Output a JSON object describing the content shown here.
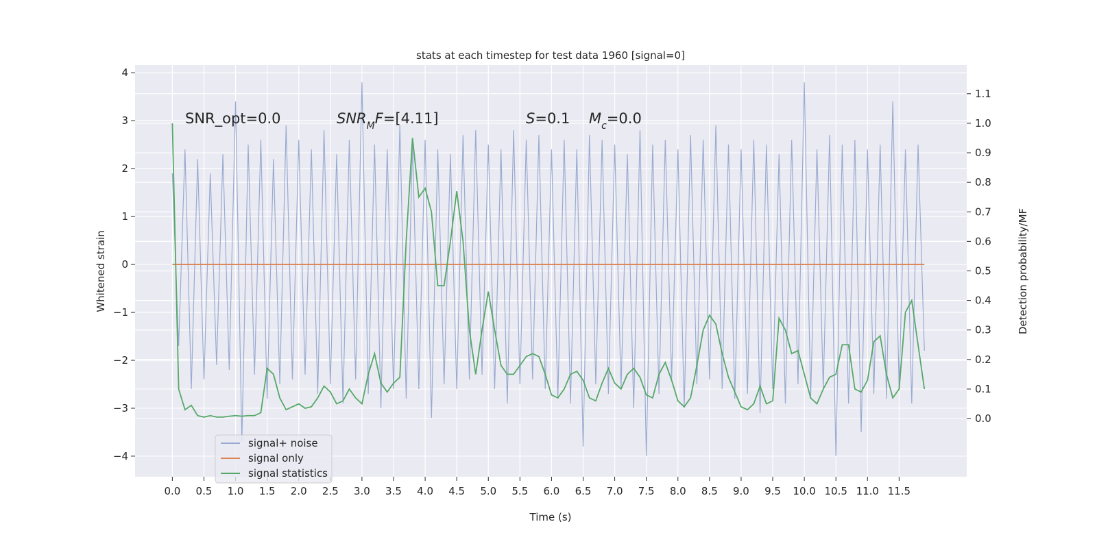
{
  "chart_data": {
    "type": "line",
    "title": "stats at each timestep for test data 1960 [signal=0]",
    "xlabel": "Time (s)",
    "ylabel": "Whitened strain",
    "y2label": "Detection probability/MF",
    "xlim": [
      -0.59,
      12.57
    ],
    "ylim": [
      -4.43,
      4.16
    ],
    "y2lim": [
      -0.197,
      1.197
    ],
    "grid": true,
    "legend": "lower left",
    "xticks": [
      {
        "value": 0,
        "label": "0.0"
      },
      {
        "value": 0.5,
        "label": "0.5"
      },
      {
        "value": 1,
        "label": "1.0"
      },
      {
        "value": 1.5,
        "label": "1.5"
      },
      {
        "value": 2,
        "label": "2.0"
      },
      {
        "value": 2.5,
        "label": "2.5"
      },
      {
        "value": 3,
        "label": "3.0"
      },
      {
        "value": 3.5,
        "label": "3.5"
      },
      {
        "value": 4,
        "label": "4.0"
      },
      {
        "value": 4.5,
        "label": "4.5"
      },
      {
        "value": 5,
        "label": "5.0"
      },
      {
        "value": 5.5,
        "label": "5.5"
      },
      {
        "value": 6,
        "label": "6.0"
      },
      {
        "value": 6.5,
        "label": "6.5"
      },
      {
        "value": 7,
        "label": "7.0"
      },
      {
        "value": 7.5,
        "label": "7.5"
      },
      {
        "value": 8,
        "label": "8.0"
      },
      {
        "value": 8.5,
        "label": "8.5"
      },
      {
        "value": 9,
        "label": "9.0"
      },
      {
        "value": 9.5,
        "label": "9.5"
      },
      {
        "value": 10,
        "label": "10.0"
      },
      {
        "value": 10.5,
        "label": "10.5"
      },
      {
        "value": 11,
        "label": "11.0"
      },
      {
        "value": 11.5,
        "label": "11.5"
      }
    ],
    "yticks": [
      {
        "value": -4,
        "label": "−4"
      },
      {
        "value": -3,
        "label": "−3"
      },
      {
        "value": -2,
        "label": "−2"
      },
      {
        "value": -1,
        "label": "−1"
      },
      0,
      1,
      2,
      3,
      4
    ],
    "y2ticks": [
      {
        "value": 0,
        "label": "0.0"
      },
      {
        "value": 0.1,
        "label": "0.1"
      },
      {
        "value": 0.2,
        "label": "0.2"
      },
      {
        "value": 0.3,
        "label": "0.3"
      },
      {
        "value": 0.4,
        "label": "0.4"
      },
      {
        "value": 0.5,
        "label": "0.5"
      },
      {
        "value": 0.6,
        "label": "0.6"
      },
      {
        "value": 0.7,
        "label": "0.7"
      },
      {
        "value": 0.8,
        "label": "0.8"
      },
      {
        "value": 0.9,
        "label": "0.9"
      },
      {
        "value": 1,
        "label": "1.0"
      },
      {
        "value": 1.1,
        "label": "1.1"
      }
    ],
    "annotations": [
      [
        {
          "text": "SNR_opt=0.0"
        }
      ],
      [
        {
          "text": "SNR",
          "style": "italic"
        },
        {
          "text": "M",
          "style": "italic-sub"
        },
        {
          "text": "F",
          "style": "italic"
        },
        {
          "text": "=[4.11]"
        }
      ],
      [
        {
          "text": "S",
          "style": "italic"
        },
        {
          "text": "=0.1"
        }
      ],
      [
        {
          "text": "M",
          "style": "italic"
        },
        {
          "text": "c",
          "style": "italic-sub"
        },
        {
          "text": "=0.0"
        }
      ]
    ],
    "x": [
      0,
      0.1,
      0.2,
      0.3,
      0.4,
      0.5,
      0.6,
      0.7,
      0.8,
      0.9,
      1,
      1.1,
      1.2,
      1.3,
      1.4,
      1.5,
      1.6,
      1.7,
      1.8,
      1.9,
      2,
      2.1,
      2.2,
      2.3,
      2.4,
      2.5,
      2.6,
      2.7,
      2.8,
      2.9,
      3,
      3.1,
      3.2,
      3.3,
      3.4,
      3.5,
      3.6,
      3.7,
      3.8,
      3.9,
      4,
      4.1,
      4.2,
      4.3,
      4.4,
      4.5,
      4.6,
      4.7,
      4.8,
      4.9,
      5,
      5.1,
      5.2,
      5.3,
      5.4,
      5.5,
      5.6,
      5.7,
      5.8,
      5.9,
      6,
      6.1,
      6.2,
      6.3,
      6.4,
      6.5,
      6.6,
      6.7,
      6.8,
      6.9,
      7,
      7.1,
      7.2,
      7.3,
      7.4,
      7.5,
      7.6,
      7.7,
      7.8,
      7.9,
      8,
      8.1,
      8.2,
      8.3,
      8.4,
      8.5,
      8.6,
      8.7,
      8.8,
      8.9,
      9,
      9.1,
      9.2,
      9.3,
      9.4,
      9.5,
      9.6,
      9.7,
      9.8,
      9.9,
      10,
      10.1,
      10.2,
      10.3,
      10.4,
      10.5,
      10.6,
      10.7,
      10.8,
      10.9,
      11,
      11.1,
      11.2,
      11.3,
      11.4,
      11.5,
      11.6,
      11.7,
      11.8,
      11.9
    ],
    "series": [
      {
        "name": "signal+ noise",
        "color": "#9aabd1",
        "axis": "y",
        "values": [
          1.9,
          -1.7,
          2.4,
          -2.6,
          2.2,
          -2.4,
          1.9,
          -2.1,
          2.3,
          -2.2,
          3.4,
          -3.7,
          2.5,
          -2.3,
          2.6,
          -2.8,
          2.2,
          -2.5,
          2.9,
          -2.4,
          2.6,
          -2.3,
          2.4,
          -2.7,
          2.8,
          -2.5,
          2.3,
          -2.9,
          2.6,
          -2.4,
          3.8,
          -2.7,
          2.5,
          -3.0,
          2.4,
          -2.6,
          2.9,
          -2.8,
          2.5,
          -2.6,
          2.6,
          -3.2,
          2.4,
          -2.5,
          2.3,
          -2.6,
          2.7,
          -2.4,
          2.8,
          -2.3,
          2.5,
          -2.6,
          2.4,
          -2.9,
          2.8,
          -2.5,
          2.6,
          -2.4,
          2.7,
          -2.6,
          2.4,
          -2.8,
          2.6,
          -2.9,
          2.4,
          -3.8,
          2.7,
          -2.5,
          2.6,
          -2.7,
          2.5,
          -2.6,
          2.3,
          -3.0,
          2.8,
          -4.0,
          2.5,
          -2.7,
          2.6,
          -2.4,
          2.4,
          -3.0,
          2.7,
          -2.5,
          2.6,
          -2.4,
          2.9,
          -2.6,
          2.5,
          -2.8,
          2.4,
          -2.7,
          2.6,
          -3.1,
          2.5,
          -2.6,
          2.3,
          -2.9,
          2.6,
          -2.5,
          3.8,
          -2.8,
          2.4,
          -2.6,
          2.7,
          -4.0,
          2.5,
          -2.9,
          2.6,
          -3.5,
          2.4,
          -2.7,
          2.5,
          -2.8,
          3.4,
          -2.6,
          2.4,
          -2.9,
          2.5,
          -1.8
        ]
      },
      {
        "name": "signal only",
        "color": "#dd8452",
        "axis": "y",
        "values": [
          0,
          0,
          0,
          0,
          0,
          0,
          0,
          0,
          0,
          0,
          0,
          0,
          0,
          0,
          0,
          0,
          0,
          0,
          0,
          0,
          0,
          0,
          0,
          0,
          0,
          0,
          0,
          0,
          0,
          0,
          0,
          0,
          0,
          0,
          0,
          0,
          0,
          0,
          0,
          0,
          0,
          0,
          0,
          0,
          0,
          0,
          0,
          0,
          0,
          0,
          0,
          0,
          0,
          0,
          0,
          0,
          0,
          0,
          0,
          0,
          0,
          0,
          0,
          0,
          0,
          0,
          0,
          0,
          0,
          0,
          0,
          0,
          0,
          0,
          0,
          0,
          0,
          0,
          0,
          0,
          0,
          0,
          0,
          0,
          0,
          0,
          0,
          0,
          0,
          0,
          0,
          0,
          0,
          0,
          0,
          0,
          0,
          0,
          0,
          0,
          0,
          0,
          0,
          0,
          0,
          0,
          0,
          0,
          0,
          0,
          0,
          0,
          0,
          0,
          0,
          0,
          0,
          0,
          0,
          0
        ]
      },
      {
        "name": "signal statistics",
        "color": "#55a868",
        "axis": "y2",
        "values": [
          1.0,
          0.1,
          0.03,
          0.045,
          0.01,
          0.005,
          0.01,
          0.005,
          0.005,
          0.008,
          0.01,
          0.008,
          0.01,
          0.01,
          0.02,
          0.17,
          0.15,
          0.07,
          0.03,
          0.04,
          0.05,
          0.035,
          0.04,
          0.07,
          0.11,
          0.09,
          0.05,
          0.06,
          0.1,
          0.07,
          0.05,
          0.15,
          0.22,
          0.12,
          0.09,
          0.12,
          0.14,
          0.6,
          0.95,
          0.75,
          0.78,
          0.7,
          0.45,
          0.45,
          0.6,
          0.77,
          0.6,
          0.3,
          0.15,
          0.3,
          0.43,
          0.3,
          0.18,
          0.15,
          0.15,
          0.18,
          0.21,
          0.22,
          0.21,
          0.15,
          0.08,
          0.07,
          0.1,
          0.15,
          0.16,
          0.13,
          0.07,
          0.06,
          0.12,
          0.17,
          0.12,
          0.1,
          0.15,
          0.17,
          0.14,
          0.08,
          0.07,
          0.15,
          0.19,
          0.13,
          0.06,
          0.04,
          0.07,
          0.18,
          0.3,
          0.35,
          0.32,
          0.22,
          0.14,
          0.09,
          0.04,
          0.03,
          0.05,
          0.11,
          0.05,
          0.06,
          0.34,
          0.3,
          0.22,
          0.23,
          0.15,
          0.07,
          0.05,
          0.1,
          0.14,
          0.15,
          0.25,
          0.25,
          0.1,
          0.09,
          0.13,
          0.26,
          0.28,
          0.15,
          0.07,
          0.1,
          0.36,
          0.4,
          0.25,
          0.1
        ]
      }
    ]
  }
}
